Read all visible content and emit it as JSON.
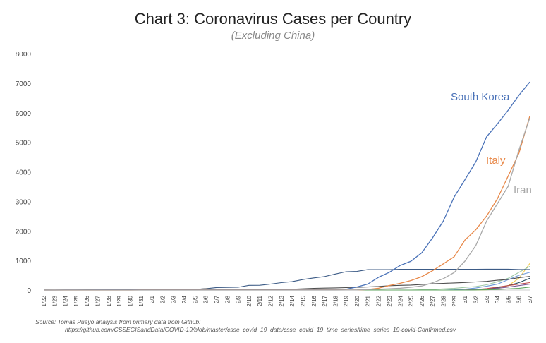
{
  "chart_data": {
    "type": "line",
    "title": "Chart 3: Coronavirus Cases per Country",
    "subtitle": "(Excluding China)",
    "xlabel": "",
    "ylabel": "",
    "ylim": [
      0,
      8000
    ],
    "yticks": [
      0,
      1000,
      2000,
      3000,
      4000,
      5000,
      6000,
      7000,
      8000
    ],
    "grid": false,
    "legend": "inline labels at line ends",
    "x": [
      "1/22",
      "1/23",
      "1/24",
      "1/25",
      "1/26",
      "1/27",
      "1/28",
      "1/29",
      "1/30",
      "1/31",
      "2/1",
      "2/2",
      "2/3",
      "2/4",
      "2/5",
      "2/6",
      "2/7",
      "2/8",
      "2/9",
      "2/10",
      "2/11",
      "2/12",
      "2/13",
      "2/14",
      "2/15",
      "2/16",
      "2/17",
      "2/18",
      "2/19",
      "2/20",
      "2/21",
      "2/22",
      "2/23",
      "2/24",
      "2/25",
      "2/26",
      "2/27",
      "2/28",
      "2/29",
      "3/1",
      "3/2",
      "3/3",
      "3/4",
      "3/5",
      "3/6",
      "3/7"
    ],
    "series": [
      {
        "name": "South Korea",
        "color": "#4a72b8",
        "labeled": true,
        "values": [
          1,
          1,
          2,
          2,
          3,
          4,
          4,
          4,
          4,
          11,
          12,
          15,
          15,
          16,
          19,
          23,
          24,
          24,
          25,
          27,
          28,
          28,
          28,
          28,
          28,
          29,
          30,
          31,
          31,
          104,
          204,
          433,
          602,
          833,
          977,
          1261,
          1766,
          2337,
          3150,
          3736,
          4335,
          5186,
          5621,
          6088,
          6593,
          7041
        ]
      },
      {
        "name": "Italy",
        "color": "#e8894a",
        "labeled": true,
        "values": [
          0,
          0,
          0,
          0,
          0,
          0,
          0,
          0,
          0,
          2,
          2,
          2,
          2,
          2,
          2,
          2,
          3,
          3,
          3,
          3,
          3,
          3,
          3,
          3,
          3,
          3,
          3,
          3,
          3,
          3,
          20,
          62,
          155,
          229,
          322,
          453,
          655,
          888,
          1128,
          1694,
          2036,
          2502,
          3089,
          3858,
          4636,
          5883
        ]
      },
      {
        "name": "Iran",
        "color": "#a8a8a8",
        "labeled": true,
        "values": [
          0,
          0,
          0,
          0,
          0,
          0,
          0,
          0,
          0,
          0,
          0,
          0,
          0,
          0,
          0,
          0,
          0,
          0,
          0,
          0,
          0,
          0,
          0,
          0,
          0,
          0,
          0,
          0,
          2,
          5,
          18,
          28,
          43,
          61,
          95,
          139,
          245,
          388,
          593,
          978,
          1501,
          2336,
          2922,
          3513,
          4747,
          5823
        ]
      },
      {
        "name": "",
        "color": "#f2c94c",
        "labeled": false,
        "values": [
          0,
          0,
          0,
          0,
          0,
          0,
          0,
          0,
          0,
          0,
          0,
          0,
          0,
          0,
          0,
          0,
          0,
          0,
          0,
          0,
          0,
          0,
          0,
          0,
          0,
          0,
          0,
          0,
          0,
          0,
          0,
          0,
          0,
          0,
          0,
          0,
          0,
          0,
          0,
          0,
          5,
          10,
          40,
          150,
          400,
          900
        ]
      },
      {
        "name": "",
        "color": "#9ec7a4",
        "labeled": false,
        "values": [
          0,
          0,
          0,
          0,
          0,
          0,
          0,
          0,
          0,
          0,
          0,
          0,
          0,
          0,
          0,
          0,
          0,
          0,
          0,
          0,
          0,
          0,
          0,
          0,
          0,
          0,
          0,
          0,
          0,
          0,
          0,
          0,
          0,
          0,
          0,
          10,
          20,
          40,
          60,
          90,
          120,
          180,
          280,
          400,
          600,
          800
        ]
      },
      {
        "name": "",
        "color": "#6a98d8",
        "labeled": false,
        "values": [
          0,
          0,
          0,
          0,
          0,
          0,
          0,
          0,
          0,
          0,
          0,
          0,
          0,
          0,
          0,
          0,
          0,
          0,
          0,
          0,
          0,
          0,
          0,
          0,
          0,
          0,
          0,
          0,
          0,
          0,
          0,
          0,
          0,
          0,
          0,
          0,
          0,
          0,
          10,
          30,
          70,
          130,
          200,
          350,
          500,
          600
        ]
      },
      {
        "name": "",
        "color": "#3c5b86",
        "labeled": false,
        "values": [
          2,
          2,
          2,
          2,
          4,
          4,
          4,
          4,
          11,
          15,
          20,
          20,
          20,
          25,
          25,
          45,
          86,
          90,
          96,
          161,
          163,
          203,
          251,
          285,
          356,
          411,
          455,
          542,
          621,
          634,
          691,
          691,
          691,
          705,
          705,
          705,
          705,
          705,
          705,
          705,
          705,
          706,
          706,
          706,
          696,
          696
        ]
      },
      {
        "name": "",
        "color": "#234a5c",
        "labeled": false,
        "values": [
          0,
          0,
          0,
          0,
          0,
          0,
          0,
          0,
          0,
          0,
          0,
          0,
          0,
          0,
          0,
          0,
          0,
          0,
          0,
          0,
          0,
          0,
          0,
          0,
          0,
          0,
          0,
          0,
          0,
          0,
          0,
          0,
          0,
          0,
          0,
          0,
          0,
          0,
          0,
          0,
          10,
          30,
          80,
          150,
          250,
          400
        ]
      },
      {
        "name": "",
        "color": "#4d4d4d",
        "labeled": false,
        "values": [
          2,
          1,
          2,
          2,
          4,
          4,
          7,
          7,
          11,
          15,
          20,
          20,
          20,
          22,
          22,
          45,
          25,
          25,
          26,
          26,
          26,
          28,
          28,
          29,
          43,
          59,
          66,
          74,
          84,
          94,
          105,
          122,
          147,
          159,
          170,
          189,
          214,
          228,
          241,
          256,
          274,
          293,
          331,
          360,
          420,
          461
        ]
      },
      {
        "name": "",
        "color": "#c0504d",
        "labeled": false,
        "values": [
          0,
          0,
          0,
          0,
          0,
          0,
          0,
          0,
          0,
          0,
          0,
          0,
          0,
          0,
          0,
          0,
          0,
          0,
          0,
          0,
          0,
          0,
          0,
          0,
          0,
          0,
          0,
          0,
          0,
          0,
          0,
          0,
          0,
          0,
          0,
          0,
          0,
          0,
          0,
          0,
          20,
          50,
          100,
          150,
          200,
          250
        ]
      },
      {
        "name": "",
        "color": "#7e5a96",
        "labeled": false,
        "values": [
          0,
          0,
          0,
          0,
          0,
          0,
          0,
          0,
          0,
          0,
          0,
          0,
          0,
          0,
          0,
          0,
          0,
          0,
          0,
          0,
          0,
          0,
          0,
          0,
          0,
          0,
          0,
          0,
          0,
          0,
          0,
          0,
          0,
          0,
          0,
          0,
          0,
          0,
          0,
          5,
          15,
          30,
          60,
          100,
          150,
          200
        ]
      },
      {
        "name": "",
        "color": "#5fa65f",
        "labeled": false,
        "values": [
          1,
          1,
          1,
          1,
          1,
          1,
          1,
          1,
          1,
          1,
          1,
          1,
          1,
          1,
          1,
          1,
          1,
          1,
          1,
          1,
          1,
          1,
          1,
          1,
          1,
          1,
          1,
          1,
          1,
          1,
          1,
          1,
          1,
          1,
          1,
          1,
          1,
          1,
          1,
          1,
          5,
          10,
          20,
          40,
          60,
          100
        ]
      }
    ]
  },
  "source_line": "Source: Tomas Pueyo analysis from primary data from Github:",
  "source_url": "https://github.com/CSSEGISandData/COVID-19/blob/master/csse_covid_19_data/csse_covid_19_time_series/time_series_19-covid-Confirmed.csv"
}
